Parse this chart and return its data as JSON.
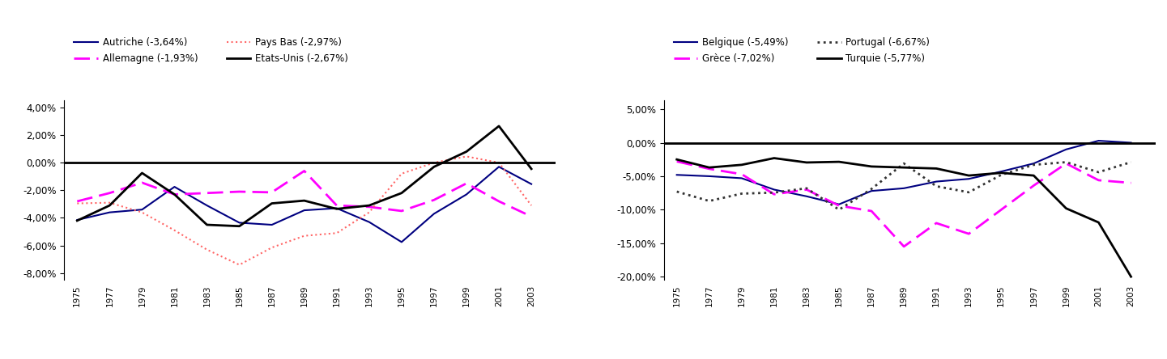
{
  "years": [
    1975,
    1977,
    1979,
    1981,
    1983,
    1985,
    1987,
    1989,
    1991,
    1993,
    1995,
    1997,
    1999,
    2001,
    2003
  ],
  "autriche": [
    -0.0415,
    -0.036,
    -0.034,
    -0.0175,
    -0.031,
    -0.0435,
    -0.045,
    -0.0345,
    -0.033,
    -0.043,
    -0.0575,
    -0.037,
    -0.023,
    -0.003,
    -0.0155
  ],
  "allemagne": [
    -0.028,
    -0.022,
    -0.0145,
    -0.023,
    -0.022,
    -0.021,
    -0.0215,
    -0.006,
    -0.031,
    -0.032,
    -0.035,
    -0.027,
    -0.015,
    -0.028,
    -0.039
  ],
  "pays_bas": [
    -0.0295,
    -0.029,
    -0.036,
    -0.049,
    -0.063,
    -0.074,
    -0.0615,
    -0.053,
    -0.051,
    -0.036,
    -0.008,
    0.0,
    0.0045,
    0.0,
    -0.031
  ],
  "etats_unis": [
    -0.042,
    -0.031,
    -0.0075,
    -0.023,
    -0.045,
    -0.046,
    -0.0295,
    -0.0275,
    -0.0335,
    -0.031,
    -0.022,
    -0.003,
    0.008,
    0.0265,
    -0.0045
  ],
  "belgique": [
    -0.048,
    -0.05,
    -0.053,
    -0.07,
    -0.08,
    -0.092,
    -0.072,
    -0.068,
    -0.058,
    -0.054,
    -0.043,
    -0.031,
    -0.01,
    0.003,
    0.0
  ],
  "grece": [
    -0.028,
    -0.039,
    -0.047,
    -0.077,
    -0.07,
    -0.094,
    -0.102,
    -0.155,
    -0.12,
    -0.136,
    -0.1,
    -0.064,
    -0.031,
    -0.056,
    -0.06
  ],
  "portugal": [
    -0.073,
    -0.087,
    -0.076,
    -0.0745,
    -0.068,
    -0.1,
    -0.069,
    -0.031,
    -0.065,
    -0.074,
    -0.048,
    -0.033,
    -0.029,
    -0.044,
    -0.029
  ],
  "turquie": [
    -0.025,
    -0.037,
    -0.033,
    -0.023,
    -0.0295,
    -0.0285,
    -0.0355,
    -0.037,
    -0.0385,
    -0.049,
    -0.045,
    -0.049,
    -0.098,
    -0.119,
    -0.2
  ],
  "left_ylim": [
    -0.085,
    0.045
  ],
  "right_ylim": [
    -0.205,
    0.063
  ],
  "left_yticks": [
    -0.08,
    -0.06,
    -0.04,
    -0.02,
    0.0,
    0.02,
    0.04
  ],
  "right_yticks": [
    -0.2,
    -0.15,
    -0.1,
    -0.05,
    0.0,
    0.05
  ]
}
